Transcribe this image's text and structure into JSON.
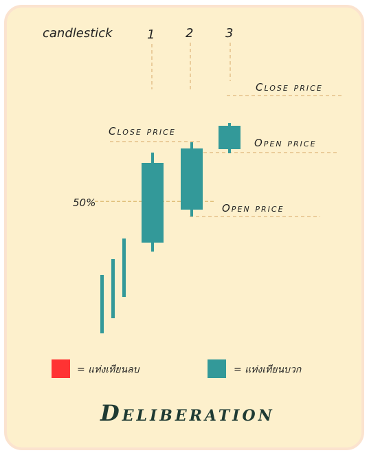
{
  "header": {
    "label": "candlestick",
    "numbers": [
      "1",
      "2",
      "3"
    ]
  },
  "annotations": {
    "close_price_1": "Close price",
    "close_price_3": "Close price",
    "open_price_3": "Open price",
    "open_price_2": "Open price",
    "fifty_percent": "50%"
  },
  "legend": {
    "negative_label": "= แท่งเทียนลบ",
    "positive_label": "= แท่งเทียนบวก",
    "negative_color": "#ff3333",
    "positive_color": "#339999"
  },
  "title": "Deliberation",
  "colors": {
    "candle": "#339999",
    "guide": "#d8a868",
    "fifty_line": "#c99a3a",
    "background": "#fdf0cc"
  }
}
